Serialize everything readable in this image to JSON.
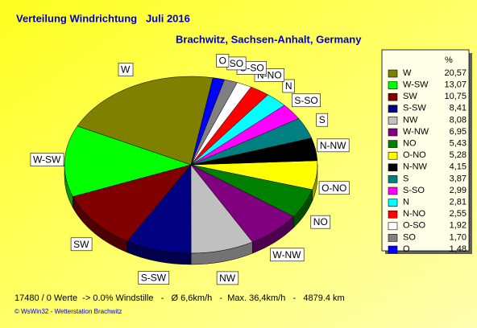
{
  "chart_data": {
    "type": "pie",
    "title": "Verteilung Windrichtung   Juli 2016",
    "subtitle": "Brachwitz, Sachsen-Anhalt, Germany",
    "categories": [
      "W",
      "W-SW",
      "SW",
      "S-SW",
      "NW",
      "W-NW",
      "NO",
      "O-NO",
      "N-NW",
      "S",
      "S-SO",
      "N",
      "N-NO",
      "O-SO",
      "SO",
      "O"
    ],
    "values": [
      20.57,
      13.07,
      10.75,
      8.41,
      8.08,
      6.95,
      5.43,
      5.28,
      4.15,
      3.87,
      2.99,
      2.81,
      2.55,
      1.92,
      1.7,
      1.48
    ],
    "value_labels": [
      "20,57",
      "13,07",
      "10,75",
      "8,41",
      "8,08",
      "6,95",
      "5,43",
      "5,28",
      "4,15",
      "3,87",
      "2,99",
      "2,81",
      "2,55",
      "1,92",
      "1,70",
      "1,48"
    ],
    "colors": [
      "#808000",
      "#00ff00",
      "#800000",
      "#000080",
      "#c0c0c0",
      "#800080",
      "#008000",
      "#ffff00",
      "#000000",
      "#008080",
      "#ff00ff",
      "#00ffff",
      "#ff0000",
      "#ffffff",
      "#808080",
      "#0000ff"
    ],
    "legend_title": "%",
    "footer": "17480 / 0 Werte  -> 0.0% Windstille   -   Ø 6,6km/h   -  Max. 36,4km/h   -   4879.4 km",
    "copyright": "© WsWin32  -  Wetterstation Brachwitz"
  }
}
